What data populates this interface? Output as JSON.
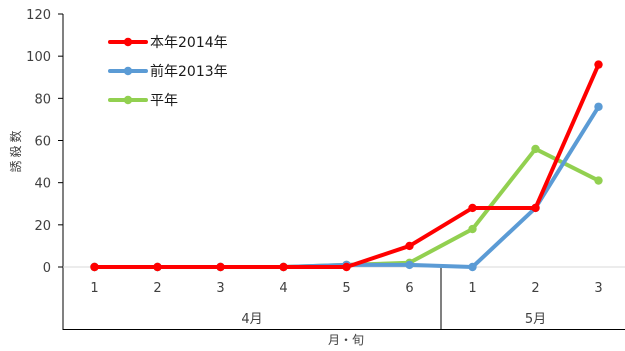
{
  "chart_data": {
    "type": "line",
    "title": "",
    "ylabel": "誘殺数",
    "xlabel": "月・旬",
    "ylim": [
      0,
      120
    ],
    "y_ticks": [
      0,
      20,
      40,
      60,
      80,
      100,
      120
    ],
    "categories": [
      "1",
      "2",
      "3",
      "4",
      "5",
      "6",
      "1",
      "2",
      "3"
    ],
    "month_groups": [
      {
        "label": "4月",
        "count": 6
      },
      {
        "label": "5月",
        "count": 3
      }
    ],
    "series": [
      {
        "name": "本年2014年",
        "color": "#ff0000",
        "values": [
          0,
          0,
          0,
          0,
          0,
          10,
          28,
          28,
          96
        ]
      },
      {
        "name": "前年2013年",
        "color": "#5b9bd5",
        "values": [
          0,
          0,
          0,
          0,
          1,
          1,
          0,
          28,
          76
        ]
      },
      {
        "name": "平年",
        "color": "#92d050",
        "values": [
          0,
          0,
          0,
          0,
          1,
          2,
          18,
          56,
          41
        ]
      }
    ],
    "legend_position": "top-left",
    "grid": false
  }
}
